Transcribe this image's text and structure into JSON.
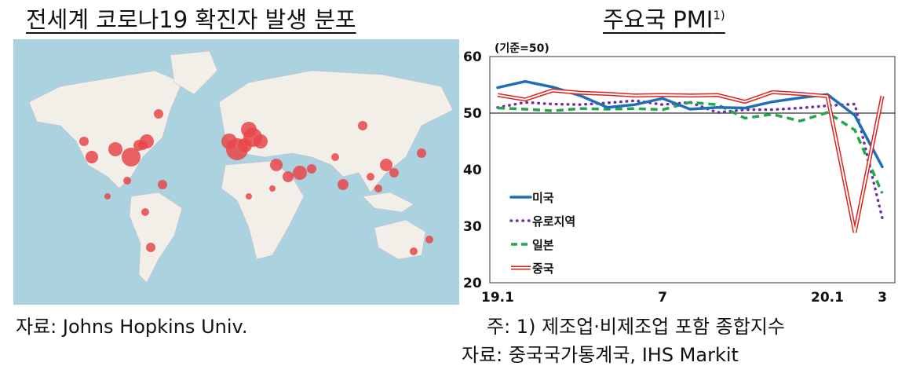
{
  "left_panel": {
    "title": "전세계 코로나19 확진자 발생 분포",
    "source": "자료: Johns Hopkins Univ."
  },
  "right_panel": {
    "title": "주요국 PMI",
    "title_footnote_mark": "1)",
    "footnote": "주: 1) 제조업·비제조업 포함 종합지수",
    "source": "자료: 중국국가통계국, IHS Markit"
  },
  "colors": {
    "us": "#1f6fb8",
    "euro": "#7030a0",
    "japan": "#22a84a",
    "china": "#e0201f",
    "map_sea": "#aad3df",
    "map_land": "#f2efe9",
    "map_dot": "#e8474a"
  },
  "chart_data": {
    "type": "line",
    "title": "주요국 PMI",
    "unit_label": "(기준=50)",
    "x": [
      "19.1",
      "19.2",
      "19.3",
      "19.4",
      "19.5",
      "19.6",
      "19.7",
      "19.8",
      "19.9",
      "19.10",
      "19.11",
      "19.12",
      "20.1",
      "20.2",
      "20.3"
    ],
    "xtick_labels": [
      {
        "index": 0,
        "label": "19.1"
      },
      {
        "index": 6,
        "label": "7"
      },
      {
        "index": 12,
        "label": "20.1"
      },
      {
        "index": 14,
        "label": "3"
      }
    ],
    "ylim": [
      20,
      60
    ],
    "yticks": [
      20,
      30,
      40,
      50,
      60
    ],
    "reference_line": 50,
    "legend_position": "left",
    "series": [
      {
        "key": "us",
        "name": "미국",
        "style": "solid",
        "values": [
          54.5,
          55.6,
          54.6,
          53.1,
          51.0,
          51.5,
          52.6,
          50.7,
          51.0,
          50.9,
          52.0,
          52.7,
          53.3,
          49.6,
          40.5
        ]
      },
      {
        "key": "euro",
        "name": "유로지역",
        "style": "dotted",
        "values": [
          51.0,
          51.9,
          51.6,
          51.5,
          51.8,
          52.2,
          51.5,
          51.9,
          50.1,
          50.6,
          50.6,
          50.9,
          51.3,
          51.6,
          31.4
        ]
      },
      {
        "key": "japan",
        "name": "일본",
        "style": "dashed",
        "values": [
          50.9,
          50.7,
          50.4,
          50.8,
          50.7,
          50.8,
          50.6,
          51.9,
          51.5,
          49.1,
          49.8,
          48.6,
          50.1,
          47.0,
          35.8
        ]
      },
      {
        "key": "china",
        "name": "중국",
        "style": "double",
        "values": [
          53.2,
          52.4,
          54.0,
          53.6,
          53.4,
          53.1,
          53.2,
          53.1,
          53.2,
          52.0,
          53.7,
          53.4,
          53.0,
          28.9,
          53.0
        ]
      }
    ]
  }
}
